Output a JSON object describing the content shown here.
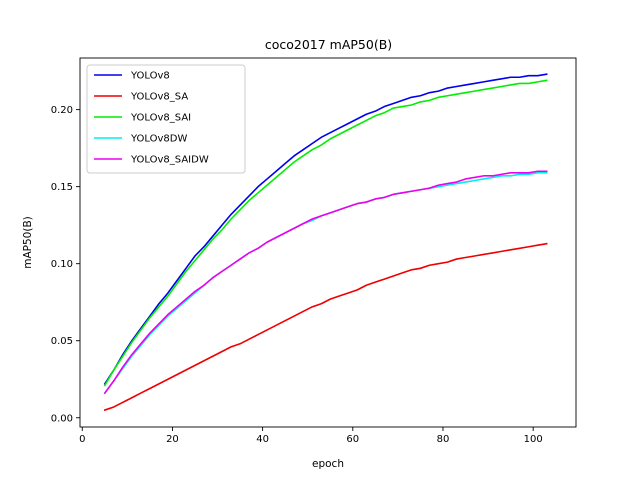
{
  "chart_data": {
    "type": "line",
    "title": "coco2017 mAP50(B)",
    "xlabel": "epoch",
    "ylabel": "mAP50(B)",
    "xlim": [
      -0.5,
      109.5
    ],
    "ylim": [
      -0.006,
      0.2335
    ],
    "xticks": [
      0,
      20,
      40,
      60,
      80,
      100
    ],
    "xtick_labels": [
      "0",
      "20",
      "40",
      "60",
      "80",
      "100"
    ],
    "yticks": [
      0.0,
      0.05,
      0.1,
      0.15,
      0.2
    ],
    "ytick_labels": [
      "0.00",
      "0.05",
      "0.10",
      "0.15",
      "0.20"
    ],
    "grid": false,
    "legend_position": "top-left",
    "series": [
      {
        "name": "YOLOv8",
        "color": "#0000ee",
        "x": [
          5,
          7,
          9,
          11,
          13,
          15,
          17,
          19,
          21,
          23,
          25,
          27,
          29,
          31,
          33,
          35,
          37,
          39,
          41,
          43,
          45,
          47,
          49,
          51,
          53,
          55,
          57,
          59,
          61,
          63,
          65,
          67,
          69,
          71,
          73,
          75,
          77,
          79,
          81,
          83,
          85,
          87,
          89,
          91,
          93,
          95,
          97,
          99,
          101,
          103
        ],
        "values": [
          0.022,
          0.031,
          0.041,
          0.05,
          0.058,
          0.066,
          0.074,
          0.081,
          0.089,
          0.097,
          0.105,
          0.111,
          0.118,
          0.125,
          0.132,
          0.138,
          0.144,
          0.15,
          0.155,
          0.16,
          0.165,
          0.17,
          0.174,
          0.178,
          0.182,
          0.185,
          0.188,
          0.191,
          0.194,
          0.197,
          0.199,
          0.202,
          0.204,
          0.206,
          0.208,
          0.209,
          0.211,
          0.212,
          0.214,
          0.215,
          0.216,
          0.217,
          0.218,
          0.219,
          0.22,
          0.221,
          0.221,
          0.222,
          0.222,
          0.223
        ]
      },
      {
        "name": "YOLOv8_SA",
        "color": "#ee0000",
        "x": [
          5,
          7,
          9,
          11,
          13,
          15,
          17,
          19,
          21,
          23,
          25,
          27,
          29,
          31,
          33,
          35,
          37,
          39,
          41,
          43,
          45,
          47,
          49,
          51,
          53,
          55,
          57,
          59,
          61,
          63,
          65,
          67,
          69,
          71,
          73,
          75,
          77,
          79,
          81,
          83,
          85,
          87,
          89,
          91,
          93,
          95,
          97,
          99,
          101,
          103
        ],
        "values": [
          0.005,
          0.007,
          0.01,
          0.013,
          0.016,
          0.019,
          0.022,
          0.025,
          0.028,
          0.031,
          0.034,
          0.037,
          0.04,
          0.043,
          0.046,
          0.048,
          0.051,
          0.054,
          0.057,
          0.06,
          0.063,
          0.066,
          0.069,
          0.072,
          0.074,
          0.077,
          0.079,
          0.081,
          0.083,
          0.086,
          0.088,
          0.09,
          0.092,
          0.094,
          0.096,
          0.097,
          0.099,
          0.1,
          0.101,
          0.103,
          0.104,
          0.105,
          0.106,
          0.107,
          0.108,
          0.109,
          0.11,
          0.111,
          0.112,
          0.113
        ]
      },
      {
        "name": "YOLOv8_SAI",
        "color": "#00ee00",
        "x": [
          5,
          7,
          9,
          11,
          13,
          15,
          17,
          19,
          21,
          23,
          25,
          27,
          29,
          31,
          33,
          35,
          37,
          39,
          41,
          43,
          45,
          47,
          49,
          51,
          53,
          55,
          57,
          59,
          61,
          63,
          65,
          67,
          69,
          71,
          73,
          75,
          77,
          79,
          81,
          83,
          85,
          87,
          89,
          91,
          93,
          95,
          97,
          99,
          101,
          103
        ],
        "values": [
          0.021,
          0.031,
          0.04,
          0.049,
          0.057,
          0.065,
          0.072,
          0.079,
          0.087,
          0.095,
          0.102,
          0.109,
          0.116,
          0.122,
          0.129,
          0.135,
          0.141,
          0.146,
          0.151,
          0.156,
          0.161,
          0.166,
          0.17,
          0.174,
          0.177,
          0.181,
          0.184,
          0.187,
          0.19,
          0.193,
          0.196,
          0.198,
          0.201,
          0.202,
          0.203,
          0.205,
          0.206,
          0.208,
          0.209,
          0.21,
          0.211,
          0.212,
          0.213,
          0.214,
          0.215,
          0.216,
          0.217,
          0.217,
          0.218,
          0.219
        ]
      },
      {
        "name": "YOLOv8DW",
        "color": "#00eeee",
        "x": [
          5,
          7,
          9,
          11,
          13,
          15,
          17,
          19,
          21,
          23,
          25,
          27,
          29,
          31,
          33,
          35,
          37,
          39,
          41,
          43,
          45,
          47,
          49,
          51,
          53,
          55,
          57,
          59,
          61,
          63,
          65,
          67,
          69,
          71,
          73,
          75,
          77,
          79,
          81,
          83,
          85,
          87,
          89,
          91,
          93,
          95,
          97,
          99,
          101,
          103
        ],
        "values": [
          0.016,
          0.024,
          0.032,
          0.04,
          0.047,
          0.054,
          0.06,
          0.066,
          0.071,
          0.076,
          0.081,
          0.086,
          0.091,
          0.095,
          0.099,
          0.103,
          0.107,
          0.11,
          0.114,
          0.117,
          0.12,
          0.123,
          0.126,
          0.128,
          0.131,
          0.133,
          0.135,
          0.137,
          0.139,
          0.14,
          0.142,
          0.143,
          0.145,
          0.146,
          0.147,
          0.148,
          0.149,
          0.15,
          0.151,
          0.152,
          0.153,
          0.154,
          0.155,
          0.156,
          0.157,
          0.157,
          0.158,
          0.158,
          0.159,
          0.159
        ]
      },
      {
        "name": "YOLOv8_SAIDW",
        "color": "#ee00ee",
        "x": [
          5,
          7,
          9,
          11,
          13,
          15,
          17,
          19,
          21,
          23,
          25,
          27,
          29,
          31,
          33,
          35,
          37,
          39,
          41,
          43,
          45,
          47,
          49,
          51,
          53,
          55,
          57,
          59,
          61,
          63,
          65,
          67,
          69,
          71,
          73,
          75,
          77,
          79,
          81,
          83,
          85,
          87,
          89,
          91,
          93,
          95,
          97,
          99,
          101,
          103
        ],
        "values": [
          0.016,
          0.024,
          0.033,
          0.041,
          0.048,
          0.055,
          0.061,
          0.067,
          0.072,
          0.077,
          0.082,
          0.086,
          0.091,
          0.095,
          0.099,
          0.103,
          0.107,
          0.11,
          0.114,
          0.117,
          0.12,
          0.123,
          0.126,
          0.129,
          0.131,
          0.133,
          0.135,
          0.137,
          0.139,
          0.14,
          0.142,
          0.143,
          0.145,
          0.146,
          0.147,
          0.148,
          0.149,
          0.151,
          0.152,
          0.153,
          0.155,
          0.156,
          0.157,
          0.157,
          0.158,
          0.159,
          0.159,
          0.159,
          0.16,
          0.16
        ]
      }
    ]
  }
}
